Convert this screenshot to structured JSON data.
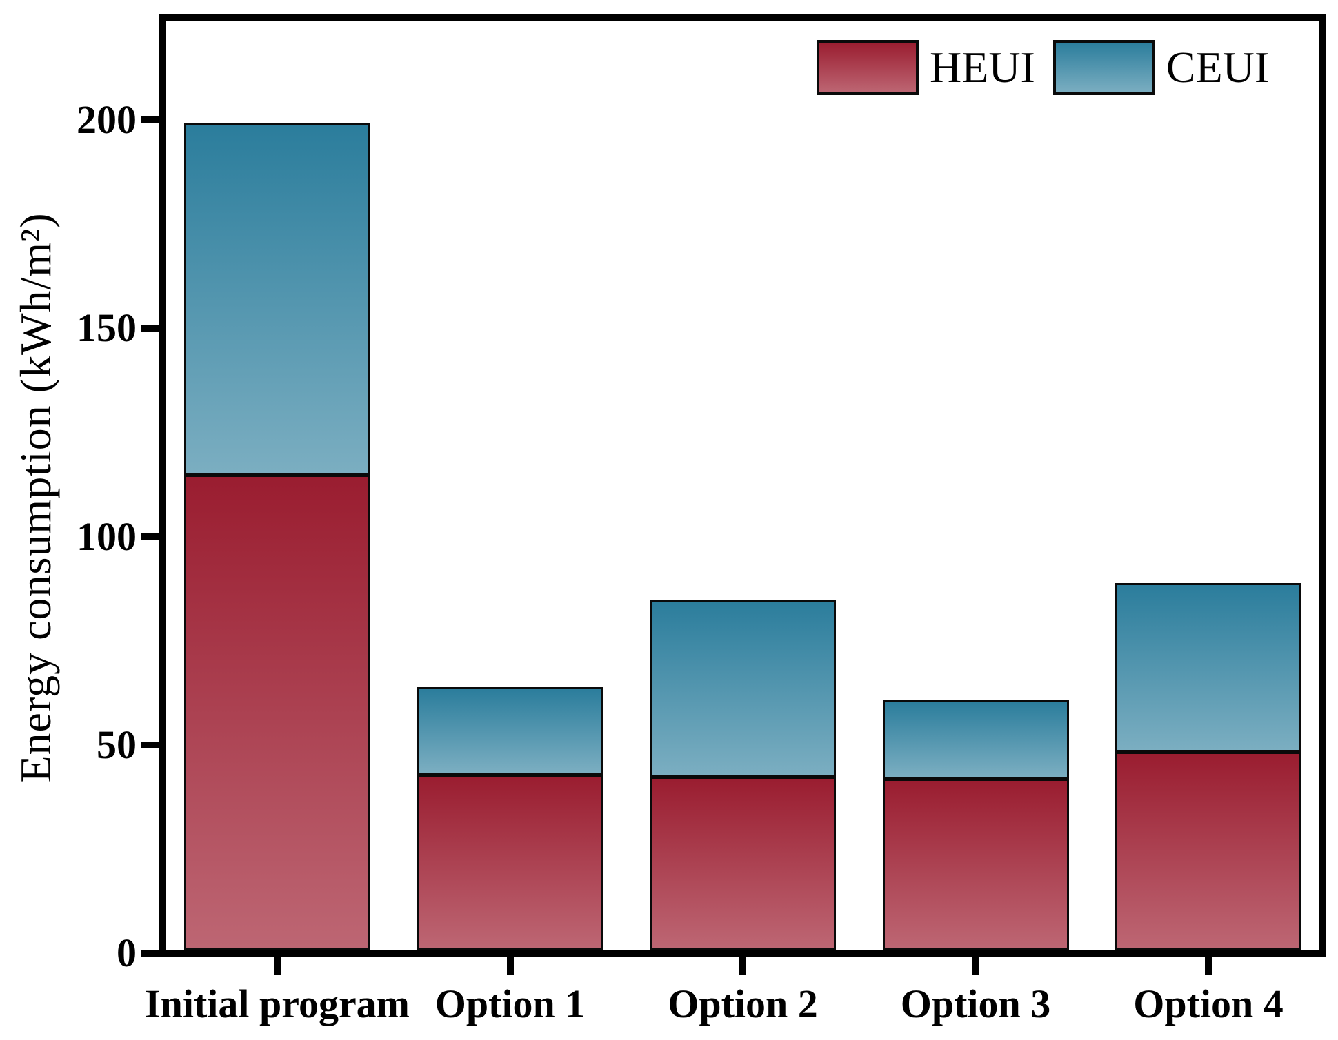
{
  "chart_data": {
    "type": "bar",
    "stacked": true,
    "title": "",
    "xlabel": "",
    "ylabel": "Energy consumption (kWh/m²)",
    "categories": [
      "Initial program",
      "Option 1",
      "Option 2",
      "Option 3",
      "Option 4"
    ],
    "series": [
      {
        "name": "HEUI",
        "values": [
          114,
          42,
          41.5,
          41,
          47.5
        ],
        "color_top": "#9a1d30",
        "color_bottom": "#bd6673"
      },
      {
        "name": "CEUI",
        "values": [
          84.5,
          21,
          42.5,
          19,
          40.5
        ],
        "color_top": "#2b7d9c",
        "color_bottom": "#7baec1"
      }
    ],
    "totals": [
      198.5,
      63,
      84,
      60,
      88
    ],
    "ylim": [
      0,
      223
    ],
    "yticks": [
      0,
      50,
      100,
      150,
      200
    ],
    "grid": false,
    "legend_position": "top-right",
    "frame_color": "#000000",
    "text_color": "#000000"
  }
}
